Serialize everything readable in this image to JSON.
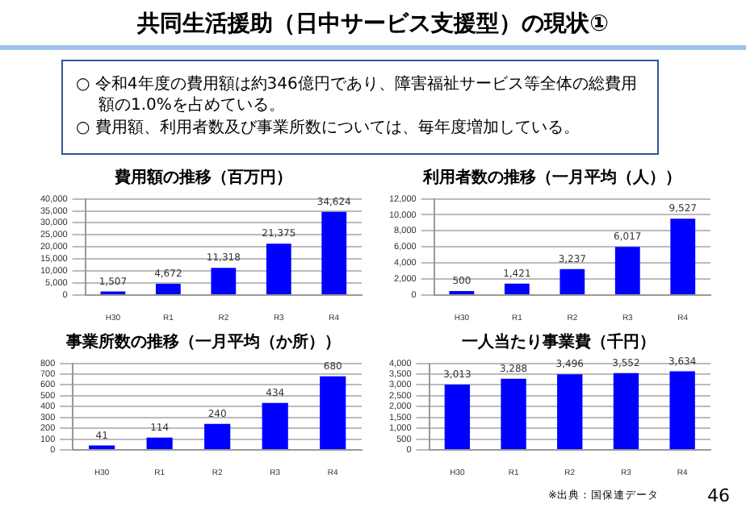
{
  "chart_data": [
    {
      "type": "other",
      "title": "共同生活援助（日中サービス支援型）の現状①",
      "annotations": [
        "○ 令和4年度の費用額は約346億円であり、障害福祉サービス等全体の総費用額の1.0%を占めている。",
        "○ 費用額、利用者数及び事業所数については、毎年度増加している。"
      ]
    },
    {
      "type": "bar",
      "title": "費用額の推移（百万円）",
      "categories": [
        "H30",
        "R1",
        "R2",
        "R3",
        "R4"
      ],
      "values": [
        1507,
        4672,
        11318,
        21375,
        34624
      ],
      "value_labels": [
        "1,507",
        "4,672",
        "11,318",
        "21,375",
        "34,624"
      ],
      "color": "#0000ff",
      "ylim": [
        0,
        40000
      ],
      "yticks": [
        0,
        {
          "value": 5000,
          "label": "5,000"
        },
        {
          "value": 10000,
          "label": "10,000"
        },
        {
          "value": 15000,
          "label": "15,000"
        },
        {
          "value": 20000,
          "label": "20,000"
        },
        {
          "value": 25000,
          "label": "25,000"
        },
        {
          "value": 30000,
          "label": "30,000"
        },
        {
          "value": 35000,
          "label": "35,000"
        },
        {
          "value": 40000,
          "label": "40,000"
        }
      ],
      "grid": "y"
    },
    {
      "type": "bar",
      "title": "利用者数の推移（一月平均（人））",
      "categories": [
        "H30",
        "R1",
        "R2",
        "R3",
        "R4"
      ],
      "values": [
        500,
        1421,
        3237,
        6017,
        9527
      ],
      "value_labels": [
        "500",
        "1,421",
        "3,237",
        "6,017",
        "9,527"
      ],
      "color": "#0000ff",
      "ylim": [
        0,
        12000
      ],
      "yticks": [
        0,
        {
          "value": 2000,
          "label": "2,000"
        },
        {
          "value": 4000,
          "label": "4,000"
        },
        {
          "value": 6000,
          "label": "6,000"
        },
        {
          "value": 8000,
          "label": "8,000"
        },
        {
          "value": 10000,
          "label": "10,000"
        },
        {
          "value": 12000,
          "label": "12,000"
        }
      ],
      "grid": "y"
    },
    {
      "type": "bar",
      "title": "事業所数の推移（一月平均（か所））",
      "categories": [
        "H30",
        "R1",
        "R2",
        "R3",
        "R4"
      ],
      "values": [
        41,
        114,
        240,
        434,
        680
      ],
      "value_labels": [
        "41",
        "114",
        "240",
        "434",
        "680"
      ],
      "color": "#0000ff",
      "ylim": [
        0,
        800
      ],
      "yticks": [
        0,
        100,
        200,
        300,
        400,
        500,
        600,
        700,
        800
      ],
      "grid": "y"
    },
    {
      "type": "bar",
      "title": "一人当たり事業費（千円）",
      "categories": [
        "H30",
        "R1",
        "R2",
        "R3",
        "R4"
      ],
      "values": [
        3013,
        3288,
        3496,
        3552,
        3634
      ],
      "value_labels": [
        "3,013",
        "3,288",
        "3,496",
        "3,552",
        "3,634"
      ],
      "color": "#0000ff",
      "ylim": [
        0,
        4000
      ],
      "yticks": [
        0,
        500,
        {
          "value": 1000,
          "label": "1,000"
        },
        {
          "value": 1500,
          "label": "1,500"
        },
        {
          "value": 2000,
          "label": "2,000"
        },
        {
          "value": 2500,
          "label": "2,500"
        },
        {
          "value": 3000,
          "label": "3,000"
        },
        {
          "value": 3500,
          "label": "3,500"
        },
        {
          "value": 4000,
          "label": "4,000"
        }
      ],
      "grid": "y",
      "annotations": [
        "※出典：国保連データ",
        "46"
      ]
    }
  ]
}
